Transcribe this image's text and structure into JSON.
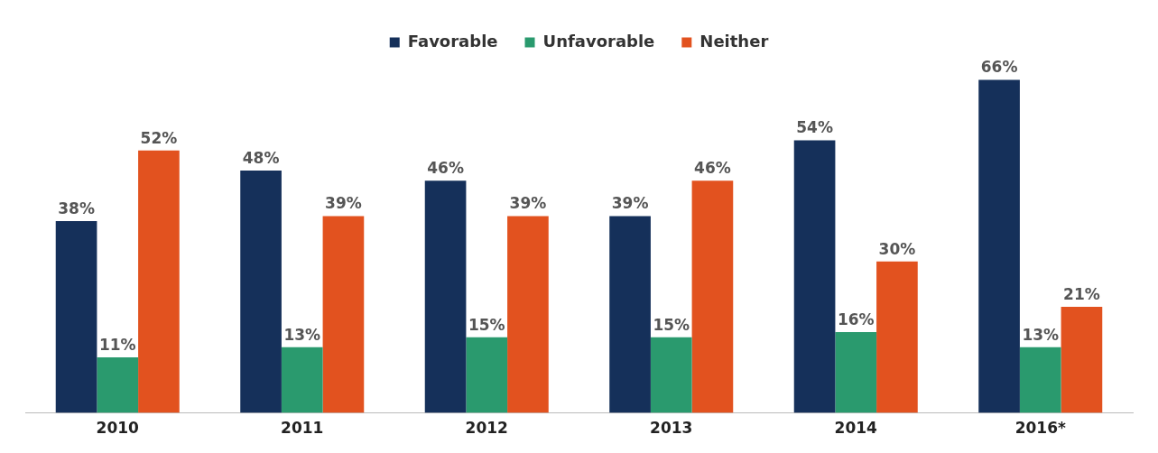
{
  "chart_data": {
    "type": "bar",
    "categories": [
      "2010",
      "2011",
      "2012",
      "2013",
      "2014",
      "2016*"
    ],
    "series": [
      {
        "name": "Favorable",
        "color": "#15305a",
        "values": [
          38,
          48,
          46,
          39,
          54,
          66
        ],
        "value_labels": [
          "38%",
          "48%",
          "46%",
          "39%",
          "54%",
          "66%"
        ]
      },
      {
        "name": "Unfavorable",
        "color": "#2a9a6e",
        "values": [
          11,
          13,
          15,
          15,
          16,
          13
        ],
        "value_labels": [
          "11%",
          "13%",
          "15%",
          "15%",
          "16%",
          "13%"
        ]
      },
      {
        "name": "Neither",
        "color": "#e2521f",
        "values": [
          52,
          39,
          39,
          46,
          30,
          21
        ],
        "value_labels": [
          "52%",
          "39%",
          "39%",
          "46%",
          "30%",
          "21%"
        ]
      }
    ],
    "legend": "top",
    "grid": false
  }
}
